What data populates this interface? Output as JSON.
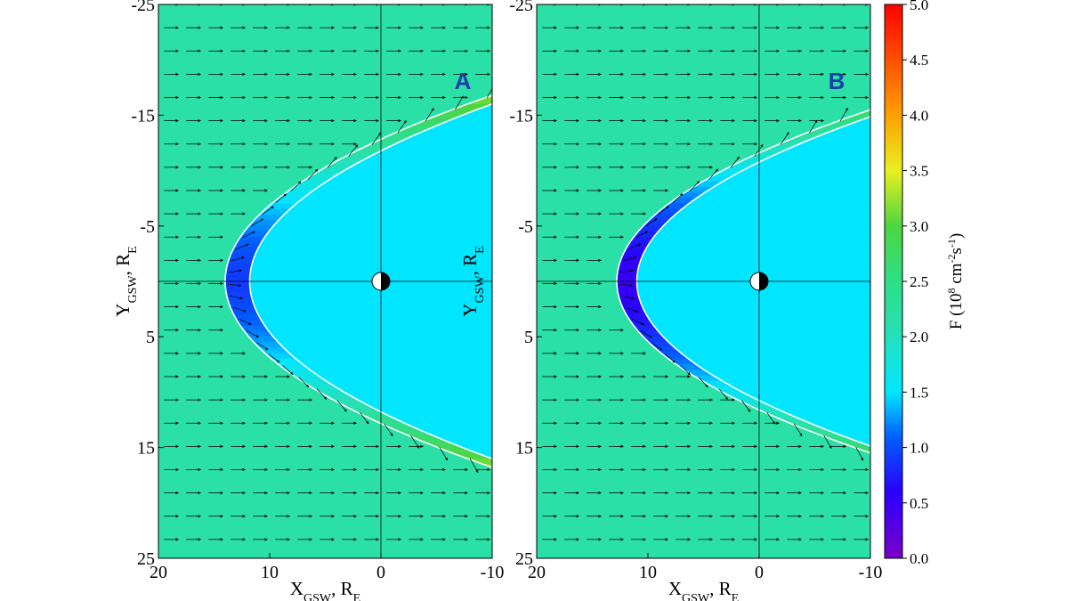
{
  "colors": {
    "solar_wind": "#2ede86",
    "magnetosphere": "#00e6ff",
    "boundary": "#ffffff",
    "arrow": "#000000",
    "panel_label": "#1c3fa8"
  },
  "chart_data": {
    "type": "heatmap",
    "panels": [
      {
        "label": "A",
        "xlim": [
          20,
          -10
        ],
        "ylim": [
          -25,
          25
        ],
        "x_ticks": [
          "20",
          "10",
          "0",
          "-10"
        ],
        "y_ticks": [
          "-25",
          "-15",
          "-5",
          "5",
          "15",
          "25"
        ],
        "xlabel_main": "X",
        "xlabel_sub": "GSW",
        "xlabel_unit": ", R",
        "xlabel_unit_sub": "E",
        "ylabel_main": "Y",
        "ylabel_sub": "GSW",
        "ylabel_unit": ", R",
        "ylabel_unit_sub": "E",
        "bow_shock": {
          "nose_x": 14.0,
          "k": 0.085
        },
        "magnetopause": {
          "nose_x": 11.8,
          "k": 0.085
        },
        "solar_wind_flux": 2.2,
        "magnetosphere_flux": 1.6,
        "sheath_nose_flux": 0.9,
        "sheath_flank_flux": 5.0
      },
      {
        "label": "B",
        "xlim": [
          20,
          -10
        ],
        "ylim": [
          -25,
          25
        ],
        "x_ticks": [
          "20",
          "10",
          "0",
          "-10"
        ],
        "y_ticks": [
          "-25",
          "-15",
          "-5",
          "5",
          "15",
          "25"
        ],
        "xlabel_main": "X",
        "xlabel_sub": "GSW",
        "xlabel_unit": ", R",
        "xlabel_unit_sub": "E",
        "ylabel_main": "Y",
        "ylabel_sub": "GSW",
        "ylabel_unit": ", R",
        "ylabel_unit_sub": "E",
        "bow_shock": {
          "nose_x": 12.8,
          "k": 0.095
        },
        "magnetopause": {
          "nose_x": 11.0,
          "k": 0.095
        },
        "solar_wind_flux": 2.2,
        "magnetosphere_flux": 1.6,
        "sheath_nose_flux": 0.5,
        "sheath_flank_flux": 5.0
      }
    ],
    "colorbar": {
      "range": [
        0.0,
        5.0
      ],
      "ticks": [
        "0.0",
        "0.5",
        "1.0",
        "1.5",
        "2.0",
        "2.5",
        "3.0",
        "3.5",
        "4.0",
        "4.5",
        "5.0"
      ],
      "label_main": "F (10",
      "label_sup1": "8",
      "label_mid": " cm",
      "label_sup2": "-2",
      "label_s": "s",
      "label_sup3": "-1",
      "label_end": ")"
    }
  }
}
